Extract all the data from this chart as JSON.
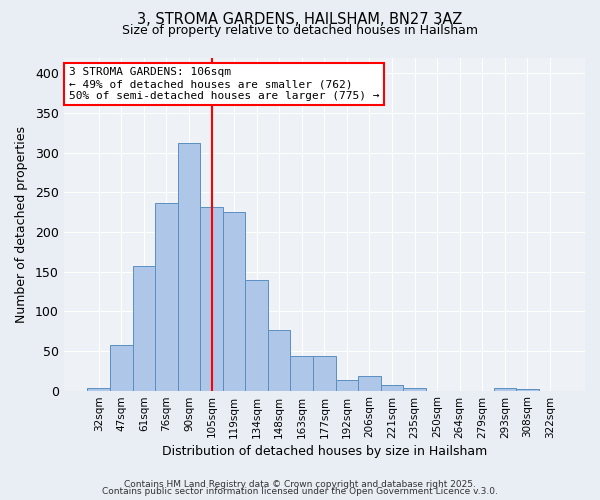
{
  "title": "3, STROMA GARDENS, HAILSHAM, BN27 3AZ",
  "subtitle": "Size of property relative to detached houses in Hailsham",
  "xlabel": "Distribution of detached houses by size in Hailsham",
  "ylabel": "Number of detached properties",
  "categories": [
    "32sqm",
    "47sqm",
    "61sqm",
    "76sqm",
    "90sqm",
    "105sqm",
    "119sqm",
    "134sqm",
    "148sqm",
    "163sqm",
    "177sqm",
    "192sqm",
    "206sqm",
    "221sqm",
    "235sqm",
    "250sqm",
    "264sqm",
    "279sqm",
    "293sqm",
    "308sqm",
    "322sqm"
  ],
  "values": [
    3,
    58,
    157,
    236,
    312,
    231,
    225,
    139,
    76,
    43,
    43,
    13,
    19,
    7,
    3,
    0,
    0,
    0,
    3,
    2,
    0
  ],
  "bar_color": "#aec6e8",
  "bar_edge_color": "#5a8fc2",
  "vline_x": 5,
  "vline_color": "red",
  "annotation_text": "3 STROMA GARDENS: 106sqm\n← 49% of detached houses are smaller (762)\n50% of semi-detached houses are larger (775) →",
  "annotation_box_color": "white",
  "annotation_box_edge_color": "red",
  "ylim": [
    0,
    420
  ],
  "yticks": [
    0,
    50,
    100,
    150,
    200,
    250,
    300,
    350,
    400
  ],
  "bg_color": "#e8eef4",
  "plot_bg_color": "#eef2f7",
  "footer_line1": "Contains HM Land Registry data © Crown copyright and database right 2025.",
  "footer_line2": "Contains public sector information licensed under the Open Government Licence v.3.0."
}
